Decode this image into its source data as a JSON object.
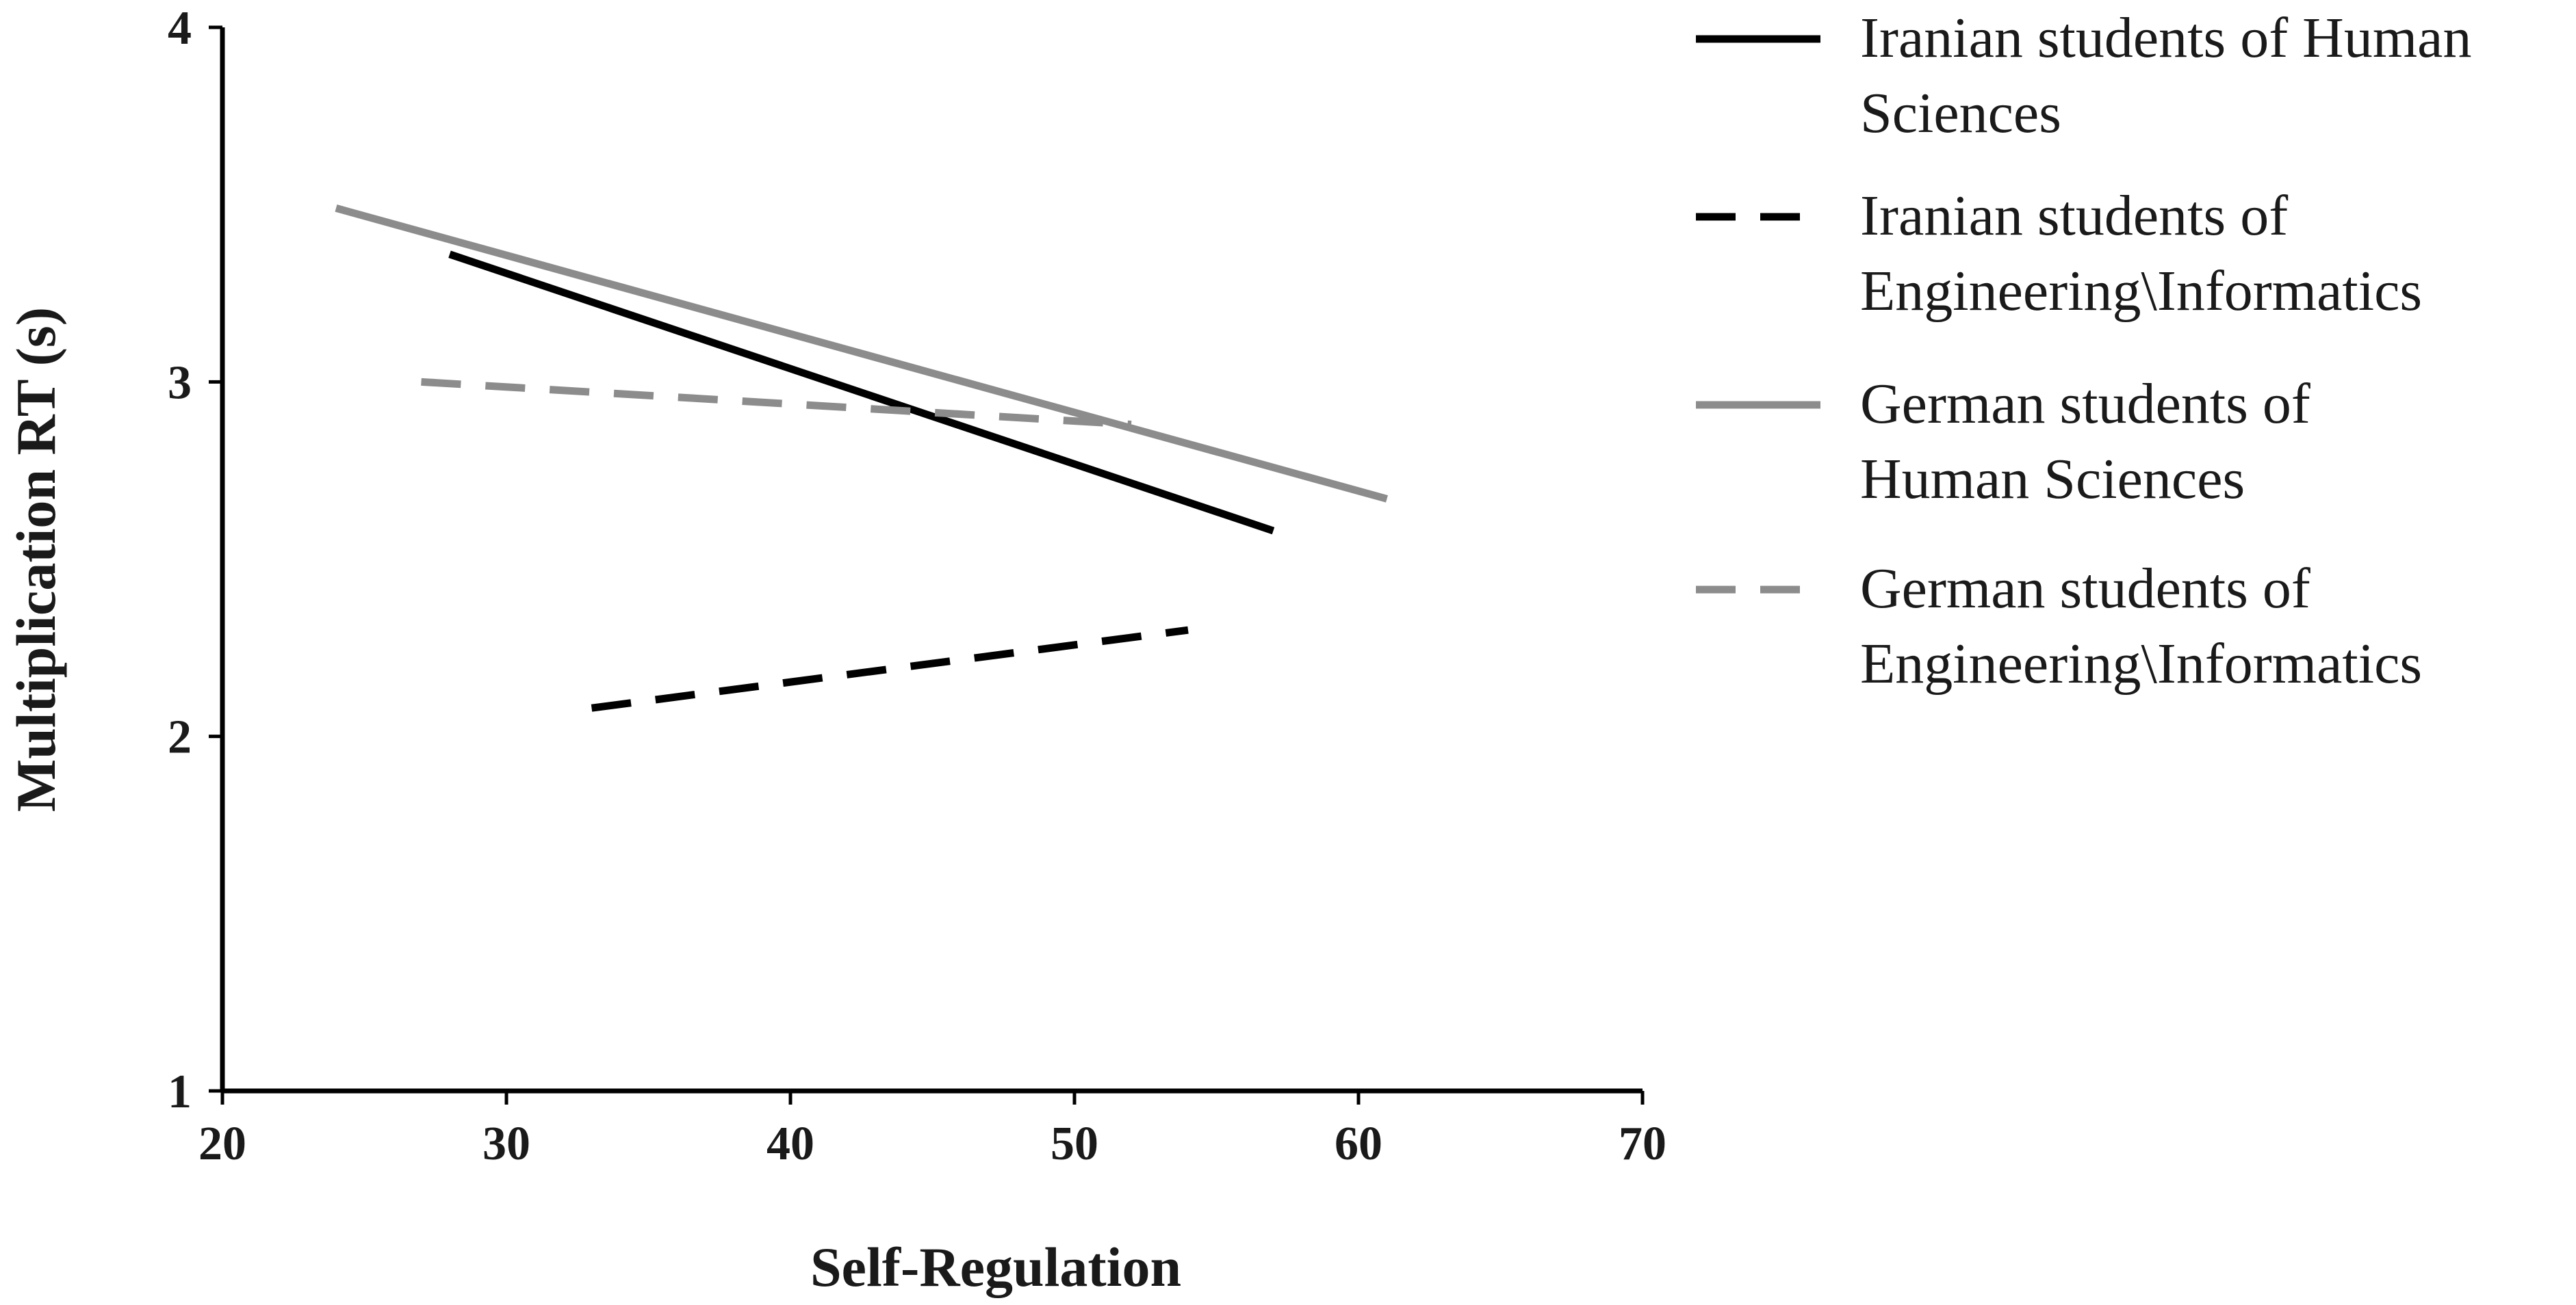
{
  "chart_data": {
    "type": "line",
    "title": "",
    "xlabel": "Self-Regulation",
    "ylabel": "Multiplication RT (s)",
    "xlim": [
      20,
      70
    ],
    "ylim": [
      1,
      4
    ],
    "xticks": [
      "20",
      "30",
      "40",
      "50",
      "60",
      "70"
    ],
    "yticks": [
      "1",
      "2",
      "3",
      "4"
    ],
    "grid": false,
    "legend_position": "right",
    "series": [
      {
        "name_lines": [
          "Iranian students of Human",
          "Sciences"
        ],
        "color": "#000000",
        "dash": "solid",
        "x": [
          28,
          57
        ],
        "y": [
          3.36,
          2.58
        ]
      },
      {
        "name_lines": [
          "Iranian students of",
          "Engineering\\Informatics"
        ],
        "color": "#000000",
        "dash": "dashed",
        "x": [
          33,
          54
        ],
        "y": [
          2.08,
          2.3
        ]
      },
      {
        "name_lines": [
          "German students of",
          "Human Sciences"
        ],
        "color": "#8c8c8c",
        "dash": "solid",
        "x": [
          24,
          61
        ],
        "y": [
          3.49,
          2.67
        ]
      },
      {
        "name_lines": [
          "German students of",
          "Engineering\\Informatics"
        ],
        "color": "#8c8c8c",
        "dash": "dashed",
        "x": [
          27,
          52
        ],
        "y": [
          3.0,
          2.88
        ]
      }
    ]
  }
}
